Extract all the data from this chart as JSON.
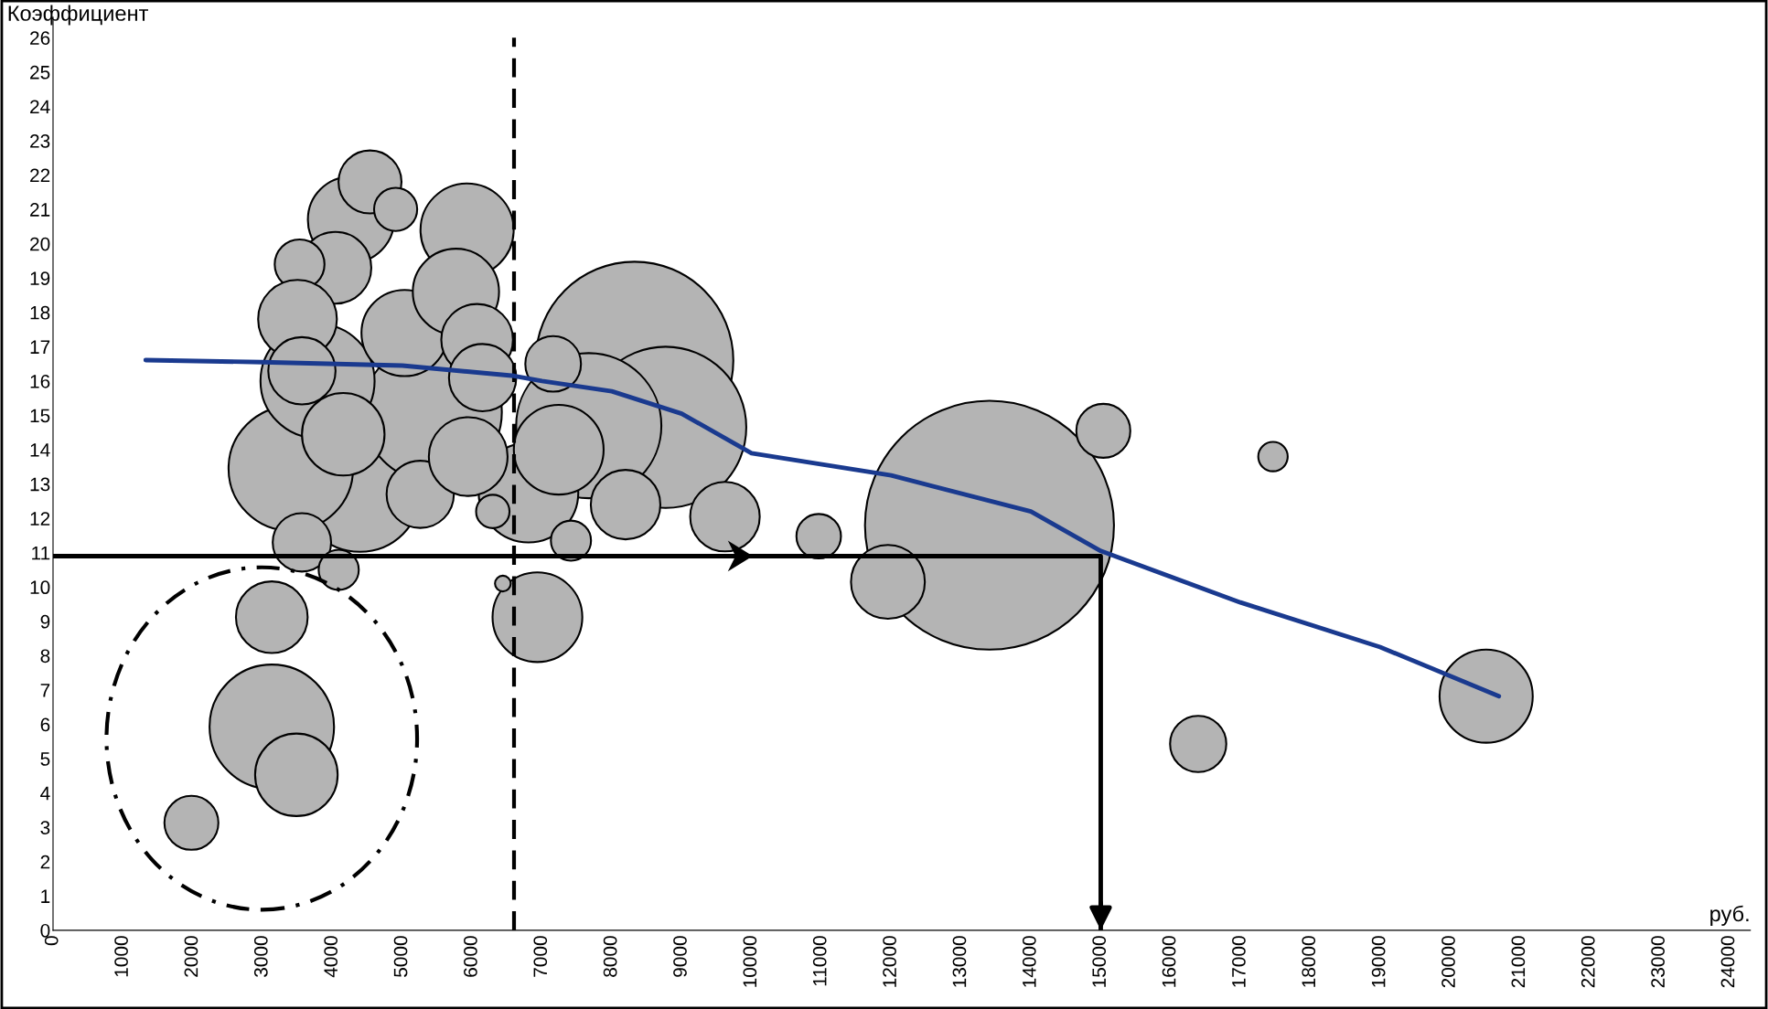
{
  "chart_data": {
    "type": "bubble",
    "ylabel": "Коэффициент",
    "xlabel": "руб.",
    "xlim": [
      0,
      24300
    ],
    "ylim": [
      0,
      26.6
    ],
    "xticks": [
      0,
      1000,
      2000,
      3000,
      4000,
      5000,
      6000,
      7000,
      8000,
      9000,
      10000,
      11000,
      12000,
      13000,
      14000,
      15000,
      16000,
      17000,
      18000,
      19000,
      20000,
      21000,
      22000,
      23000,
      24000
    ],
    "yticks": [
      0,
      1,
      2,
      3,
      4,
      5,
      6,
      7,
      8,
      9,
      10,
      11,
      12,
      13,
      14,
      15,
      16,
      17,
      18,
      19,
      20,
      21,
      22,
      23,
      24,
      25,
      26
    ],
    "grid": false,
    "legend": false,
    "ref_lines": [
      {
        "axis": "x",
        "value": 6600,
        "color": "#000000",
        "line_style": "dashed"
      }
    ],
    "series": [
      {
        "color": "#b4b4b4",
        "x": [
          8325,
          13407,
          4394,
          3404,
          5433,
          3787,
          8770,
          7670,
          6807,
          4266,
          5928,
          4538,
          4905,
          4043,
          3530,
          3500,
          5033,
          5768,
          6072,
          3563,
          6150,
          4155,
          5257,
          5944,
          6296,
          3563,
          4090,
          7160,
          7240,
          7415,
          8197,
          9620,
          6935,
          6440,
          10962,
          11953,
          15037,
          17466,
          20518,
          16395,
          3132,
          3132,
          3484,
          1981
        ],
        "values": [
          16.6,
          11.8,
          12.8,
          13.45,
          15.1,
          16.0,
          14.65,
          14.7,
          12.75,
          20.7,
          20.4,
          21.8,
          21.0,
          19.3,
          19.4,
          17.8,
          17.4,
          18.6,
          17.2,
          16.3,
          16.1,
          14.45,
          12.7,
          13.8,
          12.2,
          11.3,
          10.5,
          16.5,
          14.0,
          11.35,
          12.4,
          12.05,
          9.12,
          10.1,
          11.48,
          10.15,
          14.55,
          13.8,
          6.82,
          5.43,
          9.12,
          5.93,
          4.53,
          3.13
        ],
        "sizes": [
          0.63,
          1,
          0.24,
          0.25,
          0.31,
          0.21,
          0.42,
          0.34,
          0.16,
          0.12,
          0.14,
          0.064,
          0.03,
          0.083,
          0.04,
          0.1,
          0.12,
          0.12,
          0.083,
          0.073,
          0.073,
          0.11,
          0.073,
          0.1,
          0.018,
          0.055,
          0.026,
          0.05,
          0.13,
          0.026,
          0.078,
          0.078,
          0.13,
          0.004,
          0.032,
          0.088,
          0.047,
          0.014,
          0.14,
          0.051,
          0.083,
          0.25,
          0.11,
          0.047
        ]
      },
      {
        "type": "line",
        "color": "#1a3a8f",
        "x": [
          1326,
          3000,
          5000,
          6600,
          7000,
          8000,
          9000,
          10000,
          12000,
          14000,
          15000,
          17000,
          19000,
          20700
        ],
        "values": [
          16.61,
          16.55,
          16.45,
          16.15,
          16.0,
          15.7,
          15.05,
          13.9,
          13.25,
          12.2,
          11.05,
          9.55,
          8.25,
          6.82
        ]
      },
      {
        "type": "line",
        "color": "#000000",
        "x": [
          0,
          15000,
          15000
        ],
        "values": [
          10.9,
          10.9,
          0
        ]
      }
    ]
  }
}
